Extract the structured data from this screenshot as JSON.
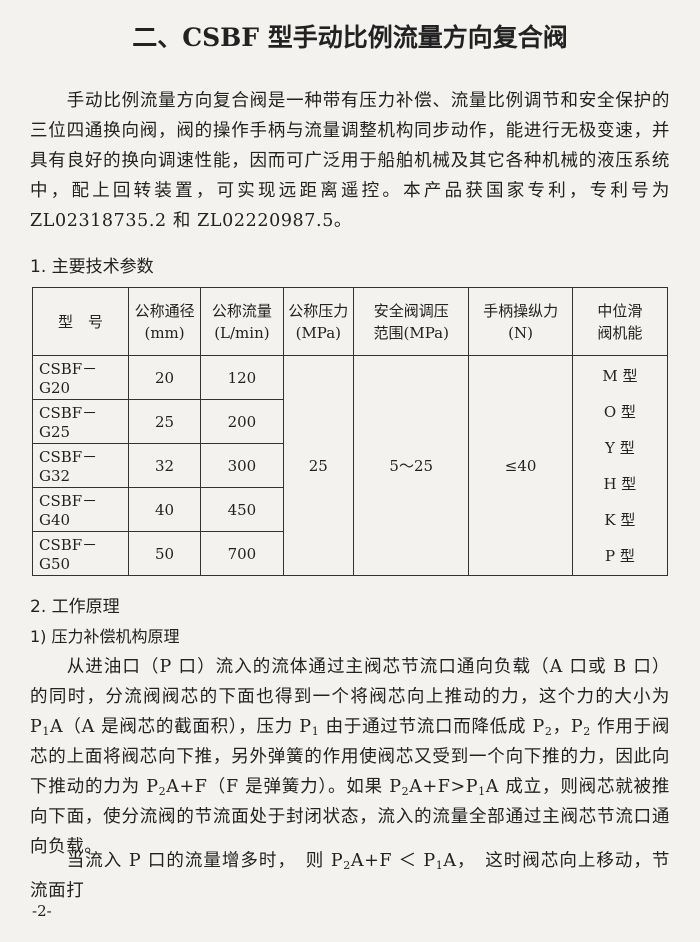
{
  "title": "二、CSBF 型手动比例流量方向复合阀",
  "intro": "手动比例流量方向复合阀是一种带有压力补偿、流量比例调节和安全保护的三位四通换向阀，阀的操作手柄与流量调整机构同步动作，能进行无极变速，并具有良好的换向调速性能，因而可广泛用于船舶机械及其它各种机械的液压系统中，配上回转装置，可实现远距离遥控。本产品获国家专利，专利号为 ZL02318735.2 和 ZL02220987.5。",
  "section1": "1. 主要技术参数",
  "table": {
    "header": [
      [
        "型　号"
      ],
      [
        "公称通径",
        "(mm)"
      ],
      [
        "公称流量",
        "(L/min)"
      ],
      [
        "公称压力",
        "(MPa)"
      ],
      [
        "安全阀调压",
        "范围(MPa)"
      ],
      [
        "手柄操纵力",
        "(N)"
      ],
      [
        "中位滑",
        "阀机能"
      ]
    ],
    "rows": [
      [
        "CSBF－G20",
        "20",
        "120"
      ],
      [
        "CSBF－G25",
        "25",
        "200"
      ],
      [
        "CSBF－G32",
        "32",
        "300"
      ],
      [
        "CSBF－G40",
        "40",
        "450"
      ],
      [
        "CSBF－G50",
        "50",
        "700"
      ]
    ],
    "pressure": "25",
    "range": "5～25",
    "force": "≤40",
    "functions": [
      "M 型",
      "O 型",
      "Y 型",
      "H 型",
      "K 型",
      "P 型"
    ]
  },
  "section2": "2. 工作原理",
  "subsection": "1) 压力补偿机构原理",
  "para2": [
    "从进油口（P 口）流入的流体通过主阀芯节流口通向负载（A 口或 B 口）的同时，分流阀阀芯的下面也得到一个将阀芯向上推动的力，这个力的大小为 P",
    {
      "sub": "1"
    },
    "A（A 是阀芯的截面积），压力 P",
    {
      "sub": "1"
    },
    " 由于通过节流口而降低成 P",
    {
      "sub": "2"
    },
    "，P",
    {
      "sub": "2"
    },
    " 作用于阀芯的上面将阀芯向下推，另外弹簧的作用使阀芯又受到一个向下推的力，因此向下推动的力为 P",
    {
      "sub": "2"
    },
    "A+F（F 是弹簧力）。如果 P",
    {
      "sub": "2"
    },
    "A+F>P",
    {
      "sub": "1"
    },
    "A 成立，则阀芯就被推向下面，使分流阀的节流面处于封闭状态，流入的流量全部通过主阀芯节流口通向负载。"
  ],
  "para3": [
    "当流入 P 口的流量增多时，　则 P",
    {
      "sub": "2"
    },
    "A+F ＜ P",
    {
      "sub": "1"
    },
    "A，　这时阀芯向上移动，节流面打"
  ],
  "page_number": "-2-"
}
